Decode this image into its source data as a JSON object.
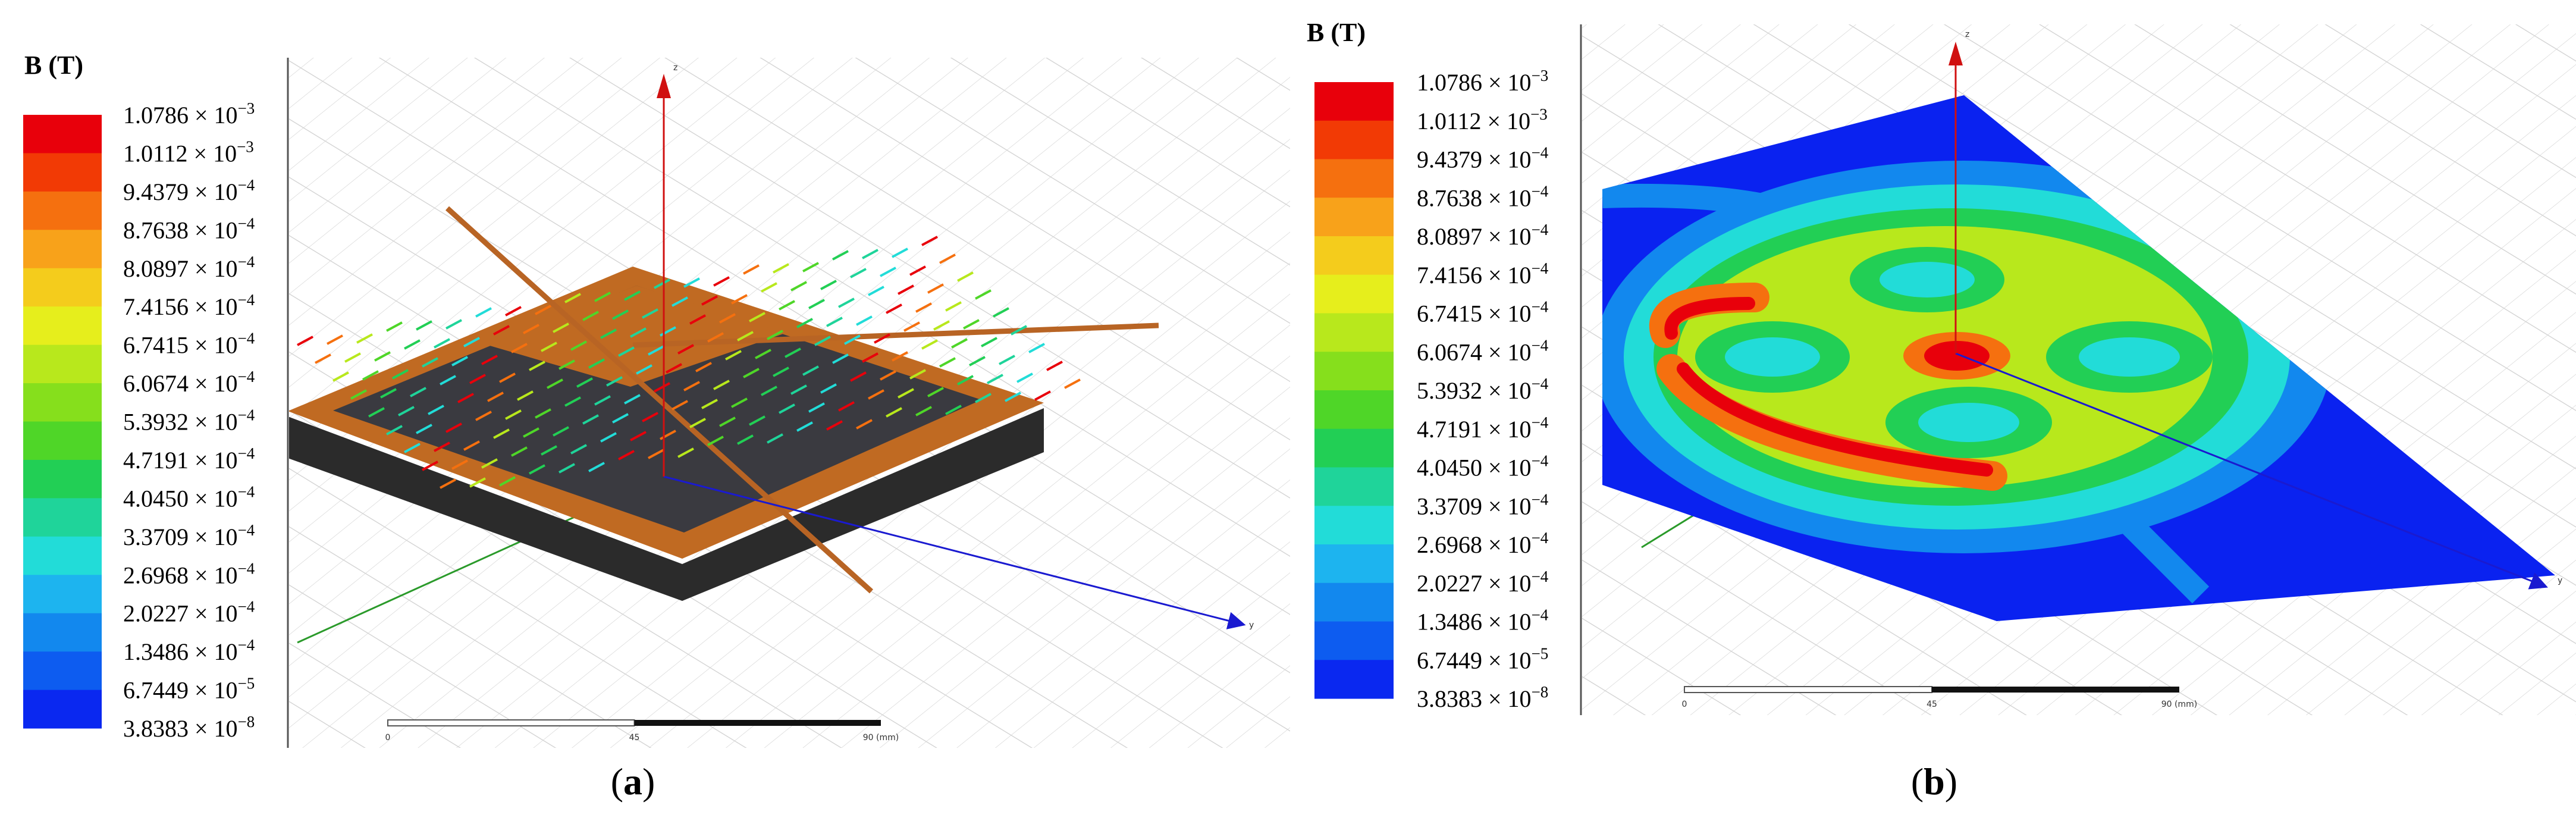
{
  "panels": [
    {
      "legend": {
        "title": "B (T)",
        "labels": [
          {
            "coef": "1.0786 × 10",
            "exp": "−3"
          },
          {
            "coef": "1.0112 × 10",
            "exp": "−3"
          },
          {
            "coef": "9.4379 × 10",
            "exp": "−4"
          },
          {
            "coef": "8.7638 × 10",
            "exp": "−4"
          },
          {
            "coef": "8.0897 × 10",
            "exp": "−4"
          },
          {
            "coef": "7.4156 × 10",
            "exp": "−4"
          },
          {
            "coef": "6.7415 × 10",
            "exp": "−4"
          },
          {
            "coef": "6.0674 × 10",
            "exp": "−4"
          },
          {
            "coef": "5.3932 × 10",
            "exp": "−4"
          },
          {
            "coef": "4.7191 × 10",
            "exp": "−4"
          },
          {
            "coef": "4.0450 × 10",
            "exp": "−4"
          },
          {
            "coef": "3.3709 × 10",
            "exp": "−4"
          },
          {
            "coef": "2.6968 × 10",
            "exp": "−4"
          },
          {
            "coef": "2.0227 × 10",
            "exp": "−4"
          },
          {
            "coef": "1.3486 × 10",
            "exp": "−4"
          },
          {
            "coef": "6.7449 × 10",
            "exp": "−5"
          },
          {
            "coef": "3.8383 × 10",
            "exp": "−8"
          }
        ],
        "colors": [
          "#e8000b",
          "#f23a05",
          "#f5700f",
          "#f8a21a",
          "#f4cc1c",
          "#e6ee1c",
          "#b8e81c",
          "#86df1c",
          "#4fd628",
          "#22cf55",
          "#1fd49a",
          "#22dcd8",
          "#1db4ef",
          "#1288ee",
          "#0d5cf0",
          "#0a28f0"
        ]
      },
      "scale_bar": {
        "ticks": [
          "0",
          "45",
          "90 (mm)"
        ]
      },
      "axes": {
        "z": "z",
        "y": "y"
      },
      "caption": {
        "before": "(",
        "letter": "a",
        "after": ")"
      }
    },
    {
      "legend": {
        "title": "B (T)",
        "labels": [
          {
            "coef": "1.0786 × 10",
            "exp": "−3"
          },
          {
            "coef": "1.0112 × 10",
            "exp": "−3"
          },
          {
            "coef": "9.4379 × 10",
            "exp": "−4"
          },
          {
            "coef": "8.7638 × 10",
            "exp": "−4"
          },
          {
            "coef": "8.0897 × 10",
            "exp": "−4"
          },
          {
            "coef": "7.4156 × 10",
            "exp": "−4"
          },
          {
            "coef": "6.7415 × 10",
            "exp": "−4"
          },
          {
            "coef": "6.0674 × 10",
            "exp": "−4"
          },
          {
            "coef": "5.3932 × 10",
            "exp": "−4"
          },
          {
            "coef": "4.7191 × 10",
            "exp": "−4"
          },
          {
            "coef": "4.0450 × 10",
            "exp": "−4"
          },
          {
            "coef": "3.3709 × 10",
            "exp": "−4"
          },
          {
            "coef": "2.6968 × 10",
            "exp": "−4"
          },
          {
            "coef": "2.0227 × 10",
            "exp": "−4"
          },
          {
            "coef": "1.3486 × 10",
            "exp": "−4"
          },
          {
            "coef": "6.7449 × 10",
            "exp": "−5"
          },
          {
            "coef": "3.8383 × 10",
            "exp": "−8"
          }
        ],
        "colors": [
          "#e8000b",
          "#f23a05",
          "#f5700f",
          "#f8a21a",
          "#f4cc1c",
          "#e6ee1c",
          "#b8e81c",
          "#86df1c",
          "#4fd628",
          "#22cf55",
          "#1fd49a",
          "#22dcd8",
          "#1db4ef",
          "#1288ee",
          "#0d5cf0",
          "#0a28f0"
        ]
      },
      "scale_bar": {
        "ticks": [
          "0",
          "45",
          "90 (mm)"
        ]
      },
      "axes": {
        "z": "z",
        "y": "y"
      },
      "caption": {
        "before": "(",
        "letter": "b",
        "after": ")"
      }
    }
  ]
}
